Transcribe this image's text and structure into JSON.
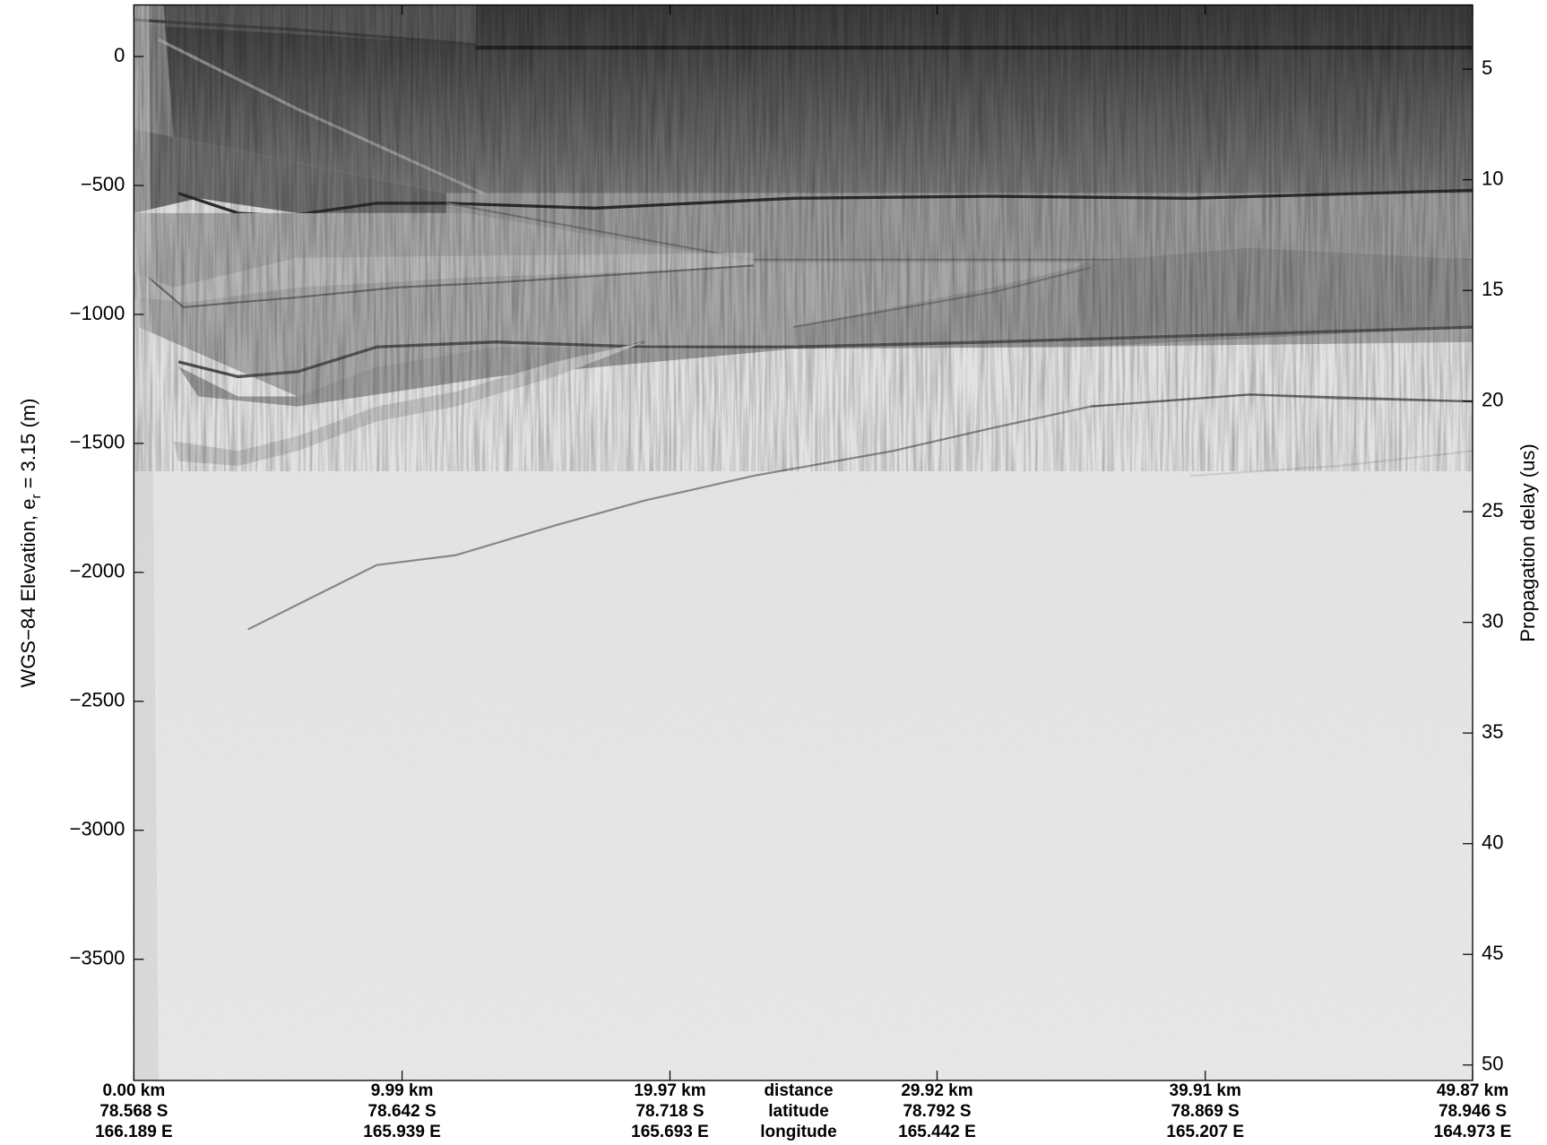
{
  "chart_data": {
    "type": "echogram",
    "ylabel": [
      "WGS−84 Elevation, e",
      "r",
      " = 3.15 (m)"
    ],
    "y2label": "Propagation delay (us)",
    "x_row_labels": [
      "distance",
      "latitude",
      "longitude"
    ],
    "xlim": [
      0,
      49.87
    ],
    "xticks": [
      {
        "value": 0,
        "label": "0.00 km"
      },
      {
        "value": 9.99,
        "label": "9.99 km"
      },
      {
        "value": 19.97,
        "label": "19.97 km"
      },
      {
        "value": 29.92,
        "label": "29.92 km"
      },
      {
        "value": 39.91,
        "label": "39.91 km"
      },
      {
        "value": 49.87,
        "label": "49.87 km"
      }
    ],
    "xtick_latitudes": [
      "78.568 S",
      "78.642 S",
      "78.718 S",
      "78.792 S",
      "78.869 S",
      "78.946 S"
    ],
    "xtick_longitudes": [
      "166.189 E",
      "165.939 E",
      "165.693 E",
      "165.442 E",
      "165.207 E",
      "164.973 E"
    ],
    "ylim": [
      -3970,
      200
    ],
    "yticks": [
      {
        "value": -3500,
        "label": "−3500"
      },
      {
        "value": -3000,
        "label": "−3000"
      },
      {
        "value": -2500,
        "label": "−2500"
      },
      {
        "value": -2000,
        "label": "−2000"
      },
      {
        "value": -1500,
        "label": "−1500"
      },
      {
        "value": -1000,
        "label": "−1000"
      },
      {
        "value": -500,
        "label": "−500"
      },
      0
    ],
    "y2lim": [
      50.7,
      2.1
    ],
    "y2ticks": [
      5,
      10,
      15,
      20,
      25,
      30,
      35,
      40,
      45,
      50
    ]
  }
}
